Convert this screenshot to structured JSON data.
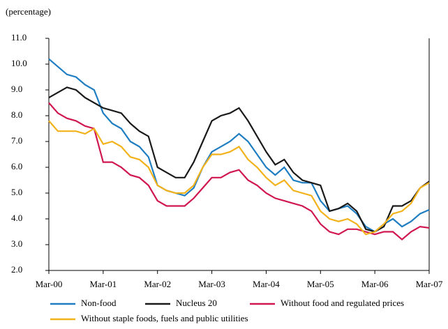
{
  "chart_data": {
    "type": "line",
    "ylabel": "(percentage)",
    "categories": [
      "Mar-00",
      null,
      null,
      null,
      null,
      null,
      "Mar-01",
      null,
      null,
      null,
      null,
      null,
      "Mar-02",
      null,
      null,
      null,
      null,
      null,
      "Mar-03",
      null,
      null,
      null,
      null,
      null,
      "Mar-04",
      null,
      null,
      null,
      null,
      null,
      "Mar-05",
      null,
      null,
      null,
      null,
      null,
      "Mar-06",
      null,
      null,
      null,
      null,
      null,
      "Mar-07"
    ],
    "series": [
      {
        "name": "Non-food",
        "color": "#1f7ec2",
        "values": [
          10.2,
          9.9,
          9.6,
          9.5,
          9.2,
          9.0,
          8.1,
          7.7,
          7.5,
          7.0,
          6.8,
          6.4,
          5.3,
          5.1,
          5.0,
          4.9,
          5.2,
          6.0,
          6.6,
          6.8,
          7.0,
          7.3,
          7.0,
          6.5,
          6.0,
          5.7,
          6.0,
          5.5,
          5.4,
          5.4,
          4.7,
          4.3,
          4.4,
          4.5,
          4.2,
          3.7,
          3.5,
          3.8,
          4.0,
          3.7,
          3.9,
          4.2,
          4.35
        ]
      },
      {
        "name": "Nucleus 20",
        "color": "#1a1a1a",
        "values": [
          8.7,
          8.9,
          9.1,
          9.0,
          8.7,
          8.5,
          8.3,
          8.2,
          8.1,
          7.7,
          7.4,
          7.2,
          6.0,
          5.8,
          5.6,
          5.6,
          6.2,
          7.0,
          7.8,
          8.0,
          8.1,
          8.3,
          7.8,
          7.2,
          6.6,
          6.1,
          6.3,
          5.8,
          5.5,
          5.4,
          5.3,
          4.3,
          4.4,
          4.6,
          4.3,
          3.6,
          3.5,
          3.7,
          4.5,
          4.5,
          4.7,
          5.2,
          5.45
        ]
      },
      {
        "name": "Without food and regulated prices",
        "color": "#d0174f",
        "values": [
          8.5,
          8.1,
          7.9,
          7.8,
          7.6,
          7.5,
          6.2,
          6.2,
          6.0,
          5.7,
          5.6,
          5.3,
          4.7,
          4.5,
          4.5,
          4.5,
          4.8,
          5.2,
          5.6,
          5.6,
          5.8,
          5.9,
          5.5,
          5.3,
          5.0,
          4.8,
          4.7,
          4.6,
          4.5,
          4.3,
          3.8,
          3.5,
          3.4,
          3.6,
          3.6,
          3.5,
          3.4,
          3.5,
          3.5,
          3.2,
          3.5,
          3.7,
          3.65
        ]
      },
      {
        "name": "Without staple foods, fuels and public utilities",
        "color": "#f2b21b",
        "values": [
          7.8,
          7.4,
          7.4,
          7.4,
          7.3,
          7.5,
          6.9,
          7.0,
          6.8,
          6.4,
          6.3,
          6.0,
          5.3,
          5.1,
          5.0,
          5.0,
          5.3,
          6.0,
          6.5,
          6.5,
          6.6,
          6.8,
          6.3,
          6.0,
          5.6,
          5.3,
          5.5,
          5.1,
          5.0,
          4.9,
          4.3,
          4.0,
          3.9,
          4.0,
          3.8,
          3.4,
          3.5,
          3.8,
          4.2,
          4.3,
          4.6,
          5.2,
          5.4
        ]
      }
    ],
    "ylim": [
      2,
      11
    ],
    "yticks": [
      {
        "value": 2,
        "label": "2.0"
      },
      {
        "value": 3,
        "label": "3.0"
      },
      {
        "value": 4,
        "label": "4.0"
      },
      {
        "value": 5,
        "label": "5.0"
      },
      {
        "value": 6,
        "label": "6.0"
      },
      {
        "value": 7,
        "label": "7.0"
      },
      {
        "value": 8,
        "label": "8.0"
      },
      {
        "value": 9,
        "label": "9.0"
      },
      {
        "value": 10,
        "label": "10.0"
      },
      {
        "value": 11,
        "label": "11.0"
      }
    ],
    "legend": "bottom"
  }
}
